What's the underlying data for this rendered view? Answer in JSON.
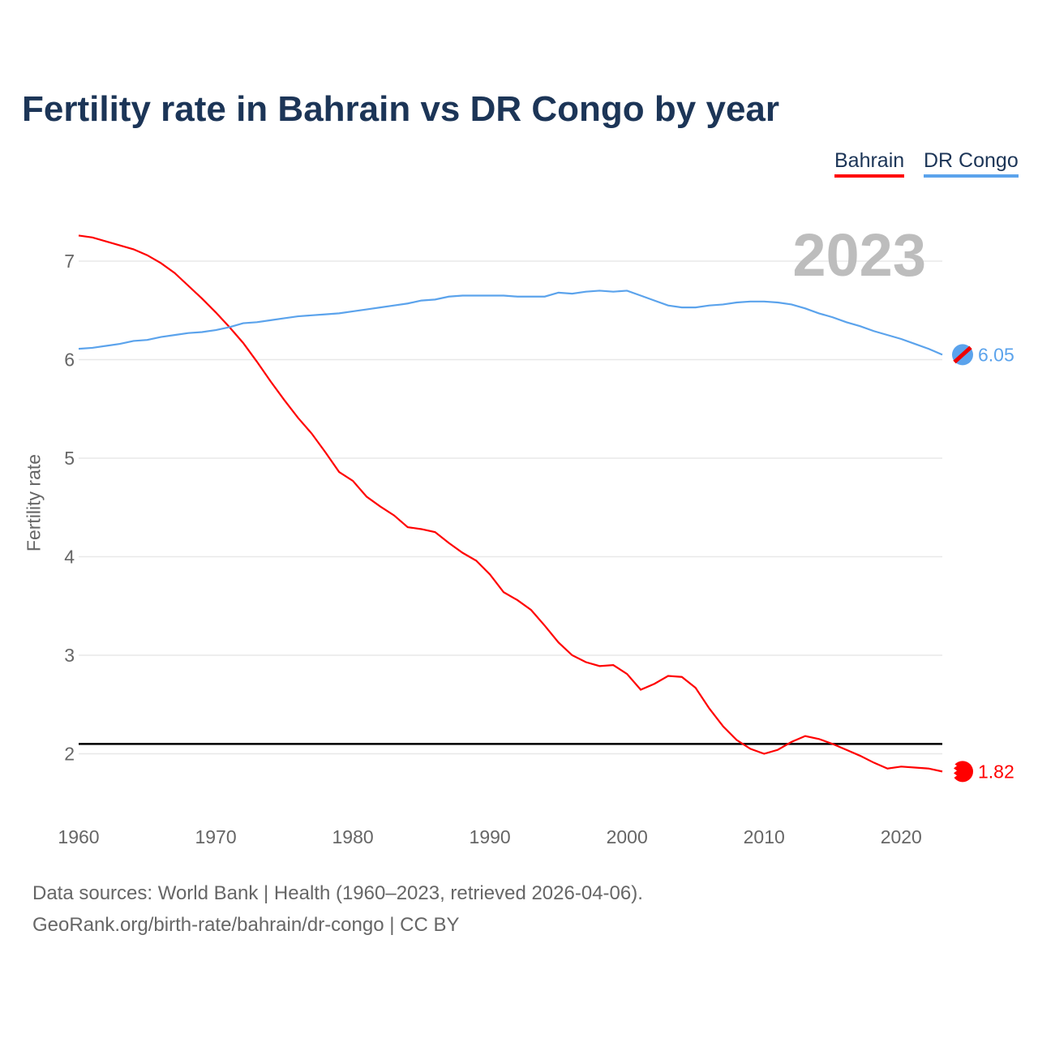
{
  "chart_data": {
    "type": "line",
    "title": "Fertility rate in Bahrain vs DR Congo by year",
    "xlabel": "",
    "ylabel": "Fertility rate",
    "xlim": [
      1960,
      2023
    ],
    "ylim": [
      1.5,
      7.5
    ],
    "x_ticks": [
      1960,
      1970,
      1980,
      1990,
      2000,
      2010,
      2020
    ],
    "y_ticks": [
      2,
      3,
      4,
      5,
      6,
      7
    ],
    "grid": true,
    "legend": "top-right",
    "current_year_label": "2023",
    "reference_line": 2.1,
    "x": [
      1960,
      1961,
      1962,
      1963,
      1964,
      1965,
      1966,
      1967,
      1968,
      1969,
      1970,
      1971,
      1972,
      1973,
      1974,
      1975,
      1976,
      1977,
      1978,
      1979,
      1980,
      1981,
      1982,
      1983,
      1984,
      1985,
      1986,
      1987,
      1988,
      1989,
      1990,
      1991,
      1992,
      1993,
      1994,
      1995,
      1996,
      1997,
      1998,
      1999,
      2000,
      2001,
      2002,
      2003,
      2004,
      2005,
      2006,
      2007,
      2008,
      2009,
      2010,
      2011,
      2012,
      2013,
      2014,
      2015,
      2016,
      2017,
      2018,
      2019,
      2020,
      2021,
      2022,
      2023
    ],
    "series": [
      {
        "name": "Bahrain",
        "color": "#ff0000",
        "end_label": "1.82",
        "values": [
          7.26,
          7.24,
          7.2,
          7.16,
          7.12,
          7.06,
          6.98,
          6.88,
          6.75,
          6.62,
          6.48,
          6.33,
          6.17,
          5.98,
          5.78,
          5.59,
          5.41,
          5.25,
          5.06,
          4.86,
          4.77,
          4.61,
          4.51,
          4.42,
          4.3,
          4.28,
          4.25,
          4.14,
          4.04,
          3.96,
          3.82,
          3.64,
          3.56,
          3.46,
          3.3,
          3.13,
          3.0,
          2.93,
          2.89,
          2.9,
          2.81,
          2.65,
          2.71,
          2.79,
          2.78,
          2.67,
          2.46,
          2.28,
          2.14,
          2.05,
          2.0,
          2.04,
          2.12,
          2.18,
          2.15,
          2.1,
          2.04,
          1.98,
          1.91,
          1.85,
          1.87,
          1.86,
          1.85,
          1.82
        ]
      },
      {
        "name": "DR Congo",
        "color": "#5ba3ec",
        "end_label": "6.05",
        "values": [
          6.11,
          6.12,
          6.14,
          6.16,
          6.19,
          6.2,
          6.23,
          6.25,
          6.27,
          6.28,
          6.3,
          6.33,
          6.37,
          6.38,
          6.4,
          6.42,
          6.44,
          6.45,
          6.46,
          6.47,
          6.49,
          6.51,
          6.53,
          6.55,
          6.57,
          6.6,
          6.61,
          6.64,
          6.65,
          6.65,
          6.65,
          6.65,
          6.64,
          6.64,
          6.64,
          6.68,
          6.67,
          6.69,
          6.7,
          6.69,
          6.7,
          6.65,
          6.6,
          6.55,
          6.53,
          6.53,
          6.55,
          6.56,
          6.58,
          6.59,
          6.59,
          6.58,
          6.56,
          6.52,
          6.47,
          6.43,
          6.38,
          6.34,
          6.29,
          6.25,
          6.21,
          6.16,
          6.11,
          6.05
        ]
      }
    ]
  },
  "footer": {
    "source": "Data sources: World Bank | Health (1960–2023, retrieved 2026-04-06).",
    "link": "GeoRank.org/birth-rate/bahrain/dr-congo | CC BY"
  }
}
